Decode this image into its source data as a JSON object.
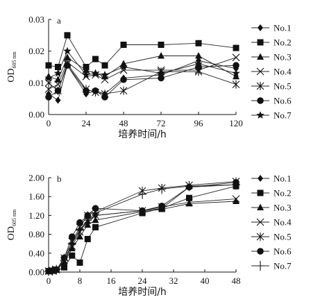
{
  "chart_data": [
    {
      "type": "line",
      "panel_label": "a",
      "xlabel": "培养时间/h",
      "ylabel_main": "OD",
      "ylabel_sub": "605 nm",
      "xlim": [
        0,
        120
      ],
      "ylim": [
        0,
        0.03
      ],
      "x_ticks": [
        0,
        24,
        48,
        72,
        96,
        120
      ],
      "x_tick_labels": [
        "0",
        "24",
        "48",
        "72",
        "96",
        "120"
      ],
      "y_ticks": [
        0,
        0.01,
        0.02,
        0.03
      ],
      "y_tick_labels": [
        "0.00",
        "0.01",
        "0.02",
        "0.03"
      ],
      "grid": false,
      "legend_position": "right",
      "series": [
        {
          "name": "No.1",
          "marker": "diamond",
          "x": [
            0,
            6,
            12,
            24,
            30,
            36,
            48,
            72,
            96,
            120
          ],
          "y": [
            0.0065,
            0.0045,
            0.0155,
            0.0065,
            0.0075,
            0.0065,
            0.0115,
            0.0125,
            0.017,
            0.0145
          ]
        },
        {
          "name": "No.2",
          "marker": "square",
          "x": [
            0,
            6,
            12,
            24,
            30,
            36,
            48,
            72,
            96,
            120
          ],
          "y": [
            0.0155,
            0.015,
            0.025,
            0.015,
            0.0175,
            0.0155,
            0.022,
            0.022,
            0.0225,
            0.021
          ]
        },
        {
          "name": "No.3",
          "marker": "triangle",
          "x": [
            0,
            6,
            12,
            24,
            30,
            36,
            48,
            72,
            96,
            120
          ],
          "y": [
            0.012,
            0.011,
            0.018,
            0.014,
            0.013,
            0.012,
            0.016,
            0.0185,
            0.0185,
            0.012
          ]
        },
        {
          "name": "No.4",
          "marker": "x",
          "x": [
            0,
            6,
            12,
            24,
            30,
            36,
            48,
            72,
            96,
            120
          ],
          "y": [
            0.008,
            0.0095,
            0.0165,
            0.012,
            0.0125,
            0.011,
            0.014,
            0.014,
            0.014,
            0.018
          ]
        },
        {
          "name": "No.5",
          "marker": "asterisk",
          "x": [
            0,
            6,
            12,
            24,
            30,
            36,
            48,
            72,
            96,
            120
          ],
          "y": [
            0.01,
            0.0075,
            0.016,
            0.008,
            0.007,
            0.0065,
            0.0075,
            0.0135,
            0.0135,
            0.0095
          ]
        },
        {
          "name": "No.6",
          "marker": "circle",
          "x": [
            0,
            6,
            12,
            24,
            30,
            36,
            48,
            72,
            96,
            120
          ],
          "y": [
            0.0055,
            0.0075,
            0.0155,
            0.0075,
            0.0075,
            0.0055,
            0.011,
            0.0115,
            0.015,
            0.0155
          ]
        },
        {
          "name": "No.7",
          "marker": "star",
          "x": [
            0,
            6,
            12,
            24,
            30,
            36,
            48,
            72,
            96,
            120
          ],
          "y": [
            0.0115,
            0.013,
            0.02,
            0.0125,
            0.013,
            0.0125,
            0.015,
            0.013,
            0.016,
            0.013
          ]
        }
      ]
    },
    {
      "type": "line",
      "panel_label": "b",
      "xlabel": "培养时间/h",
      "ylabel_main": "OD",
      "ylabel_sub": "605 nm",
      "xlim": [
        0,
        48
      ],
      "ylim": [
        0,
        2.0
      ],
      "x_ticks": [
        0,
        8,
        16,
        24,
        32,
        40,
        48
      ],
      "x_tick_labels": [
        "0",
        "8",
        "16",
        "24",
        "32",
        "40",
        "48"
      ],
      "y_ticks": [
        0,
        0.4,
        0.8,
        1.2,
        1.6,
        2.0
      ],
      "y_tick_labels": [
        "0.00",
        "0.40",
        "0.80",
        "1.20",
        "1.60",
        "2.00"
      ],
      "grid": false,
      "legend_position": "right",
      "series": [
        {
          "name": "No.1",
          "marker": "diamond",
          "x": [
            0,
            1,
            2,
            4,
            6,
            8,
            10,
            12,
            24,
            29,
            36,
            48
          ],
          "y": [
            0.02,
            0.03,
            0.05,
            0.2,
            0.6,
            0.9,
            1.05,
            1.2,
            1.3,
            1.35,
            1.8,
            1.85
          ]
        },
        {
          "name": "No.2",
          "marker": "square",
          "x": [
            0,
            1,
            2,
            4,
            6,
            8,
            10,
            12,
            24,
            29,
            36,
            48
          ],
          "y": [
            0.02,
            0.03,
            0.05,
            0.1,
            0.35,
            0.2,
            0.7,
            0.95,
            1.25,
            1.35,
            1.57,
            1.82
          ]
        },
        {
          "name": "No.3",
          "marker": "triangle",
          "x": [
            0,
            1,
            2,
            4,
            6,
            8,
            10,
            12,
            24,
            29,
            36,
            48
          ],
          "y": [
            0.02,
            0.03,
            0.05,
            0.2,
            0.5,
            0.75,
            1.0,
            1.1,
            1.28,
            1.33,
            1.45,
            1.5
          ]
        },
        {
          "name": "No.4",
          "marker": "x",
          "x": [
            0,
            1,
            2,
            4,
            6,
            8,
            10,
            12,
            24,
            29,
            36,
            48
          ],
          "y": [
            0.02,
            0.03,
            0.05,
            0.25,
            0.55,
            0.85,
            1.1,
            1.2,
            1.3,
            1.38,
            1.48,
            1.55
          ]
        },
        {
          "name": "No.5",
          "marker": "asterisk",
          "x": [
            0,
            1,
            2,
            4,
            6,
            8,
            10,
            12,
            24,
            29,
            36,
            48
          ],
          "y": [
            0.02,
            0.03,
            0.05,
            0.3,
            0.65,
            0.95,
            1.2,
            1.28,
            1.72,
            1.78,
            1.84,
            1.92
          ]
        },
        {
          "name": "No.6",
          "marker": "circle",
          "x": [
            0,
            1,
            2,
            4,
            6,
            8,
            10,
            12,
            24,
            29,
            36,
            48
          ],
          "y": [
            0.02,
            0.03,
            0.05,
            0.3,
            0.75,
            1.05,
            1.2,
            1.35,
            1.3,
            1.4,
            1.8,
            1.9
          ]
        },
        {
          "name": "No.7",
          "marker": "plus",
          "x": [
            0,
            1,
            2,
            4,
            6,
            8,
            10,
            12,
            24,
            29,
            36,
            48
          ],
          "y": [
            0.02,
            0.03,
            0.05,
            0.25,
            0.6,
            0.9,
            1.1,
            1.25,
            1.65,
            1.76,
            1.82,
            1.85
          ]
        }
      ]
    }
  ]
}
